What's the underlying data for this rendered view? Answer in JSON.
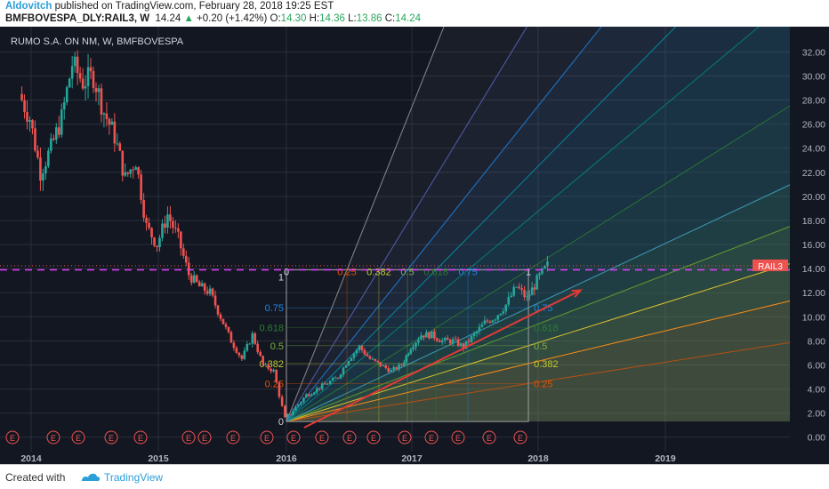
{
  "header": {
    "author": "Aldovitch",
    "published_text": " published on TradingView.com, February 28, 2018 19:25 EST",
    "symbol": "BMFBOVESPA_DLY:RAIL3, W",
    "price": "14.24",
    "change": "+0.20 (+1.42%)",
    "o_label": "O:",
    "o_value": "14.30",
    "h_label": "H:",
    "h_value": "14.36",
    "l_label": "L:",
    "l_value": "13.86",
    "c_label": "C:",
    "c_value": "14.24"
  },
  "footer": {
    "created_with": "Created with",
    "brand": "TradingView"
  },
  "chart_data": {
    "type": "candlestick",
    "title": "RUMO S.A. ON NM, W, BMFBOVESPA",
    "ylim": [
      -1.2,
      33.5
    ],
    "y_ticks": [
      "32.00",
      "30.00",
      "28.00",
      "26.00",
      "24.00",
      "22.00",
      "20.00",
      "18.00",
      "16.00",
      "14.00",
      "12.00",
      "10.00",
      "8.00",
      "6.00",
      "4.00",
      "2.00",
      "0.00"
    ],
    "x_labels": [
      "2014",
      "2015",
      "2016",
      "2017",
      "2018",
      "2019"
    ],
    "colors": {
      "background": "#131722",
      "up": "#26a69a",
      "down": "#ef5350",
      "grid": "#2a2e39",
      "axis_text": "#b2b5be",
      "fan_line": "#b0b0b0",
      "arrow": "#e53935",
      "horizontal_line": "#e040fb"
    },
    "price_line": {
      "label": "RAIL3",
      "value": 14.24,
      "color": "#ef5350"
    },
    "horizontal_line": {
      "value": 13.9,
      "label": "13.90"
    },
    "weekly_close_path": [
      {
        "date": "2013-12",
        "close": 28.5
      },
      {
        "date": "2014-01",
        "close": 26.5
      },
      {
        "date": "2014-02",
        "close": 22.0
      },
      {
        "date": "2014-03",
        "close": 24.0
      },
      {
        "date": "2014-04",
        "close": 26.5
      },
      {
        "date": "2014-05",
        "close": 31.0
      },
      {
        "date": "2014-06",
        "close": 29.5
      },
      {
        "date": "2014-07",
        "close": 30.0
      },
      {
        "date": "2014-08",
        "close": 27.0
      },
      {
        "date": "2014-09",
        "close": 25.0
      },
      {
        "date": "2014-10",
        "close": 21.5
      },
      {
        "date": "2014-11",
        "close": 23.0
      },
      {
        "date": "2014-12",
        "close": 17.5
      },
      {
        "date": "2015-01",
        "close": 16.0
      },
      {
        "date": "2015-02",
        "close": 18.5
      },
      {
        "date": "2015-03",
        "close": 16.5
      },
      {
        "date": "2015-04",
        "close": 13.5
      },
      {
        "date": "2015-05",
        "close": 12.5
      },
      {
        "date": "2015-06",
        "close": 12.0
      },
      {
        "date": "2015-07",
        "close": 10.0
      },
      {
        "date": "2015-08",
        "close": 8.0
      },
      {
        "date": "2015-09",
        "close": 6.5
      },
      {
        "date": "2015-10",
        "close": 8.5
      },
      {
        "date": "2015-11",
        "close": 6.0
      },
      {
        "date": "2015-12",
        "close": 5.5
      },
      {
        "date": "2016-01",
        "close": 1.5
      },
      {
        "date": "2016-02",
        "close": 2.5
      },
      {
        "date": "2016-03",
        "close": 3.5
      },
      {
        "date": "2016-04",
        "close": 4.0
      },
      {
        "date": "2016-05",
        "close": 4.5
      },
      {
        "date": "2016-06",
        "close": 5.0
      },
      {
        "date": "2016-07",
        "close": 6.5
      },
      {
        "date": "2016-08",
        "close": 7.5
      },
      {
        "date": "2016-09",
        "close": 6.5
      },
      {
        "date": "2016-10",
        "close": 6.0
      },
      {
        "date": "2016-11",
        "close": 5.5
      },
      {
        "date": "2016-12",
        "close": 6.0
      },
      {
        "date": "2017-01",
        "close": 7.5
      },
      {
        "date": "2017-02",
        "close": 8.5
      },
      {
        "date": "2017-03",
        "close": 8.5
      },
      {
        "date": "2017-04",
        "close": 8.0
      },
      {
        "date": "2017-05",
        "close": 8.0
      },
      {
        "date": "2017-06",
        "close": 7.5
      },
      {
        "date": "2017-07",
        "close": 8.5
      },
      {
        "date": "2017-08",
        "close": 9.5
      },
      {
        "date": "2017-09",
        "close": 10.0
      },
      {
        "date": "2017-10",
        "close": 11.0
      },
      {
        "date": "2017-11",
        "close": 12.5
      },
      {
        "date": "2017-12",
        "close": 11.5
      },
      {
        "date": "2018-01",
        "close": 13.0
      },
      {
        "date": "2018-02",
        "close": 14.24
      }
    ],
    "fib_box": {
      "start": {
        "date": "2016-01",
        "price": 1.3
      },
      "end": {
        "date": "2017-12",
        "price": 13.9
      },
      "levels": [
        "0.25",
        "0.382",
        "0.5",
        "0.618",
        "0.75",
        "1",
        "0"
      ]
    },
    "earnings_markers": [
      "E",
      "E",
      "E",
      "E",
      "E",
      "E",
      "E",
      "E",
      "E",
      "E",
      "E",
      "E",
      "E",
      "E",
      "E",
      "E",
      "E",
      "E",
      "E",
      "E"
    ]
  }
}
